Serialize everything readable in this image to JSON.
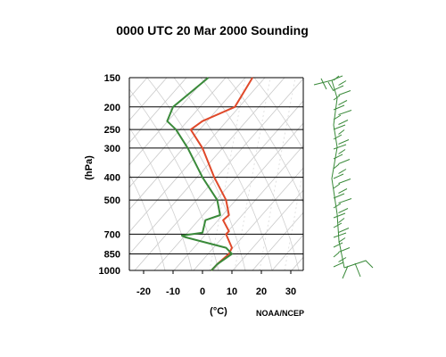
{
  "chart_data": {
    "type": "line",
    "title": "0000 UTC  20 Mar 2000 Sounding",
    "xlabel": "(°C)",
    "ylabel": "(hPa)",
    "credit": "NOAA/NCEP",
    "y_scale": "log",
    "y_inverted": true,
    "xlim": [
      -25,
      35
    ],
    "ylim": [
      1000,
      150
    ],
    "x_ticks": [
      -20,
      -10,
      0,
      10,
      20,
      30
    ],
    "y_ticks": [
      150,
      200,
      250,
      300,
      400,
      500,
      700,
      850,
      1000
    ],
    "grid": true,
    "series": [
      {
        "kind": "temperature",
        "color": "#e0492a",
        "points": [
          {
            "p": 150,
            "t": 17
          },
          {
            "p": 200,
            "t": 11
          },
          {
            "p": 230,
            "t": 0
          },
          {
            "p": 250,
            "t": -4
          },
          {
            "p": 300,
            "t": 0
          },
          {
            "p": 400,
            "t": 4
          },
          {
            "p": 500,
            "t": 8
          },
          {
            "p": 580,
            "t": 9
          },
          {
            "p": 610,
            "t": 7
          },
          {
            "p": 680,
            "t": 9
          },
          {
            "p": 700,
            "t": 8
          },
          {
            "p": 800,
            "t": 10
          },
          {
            "p": 850,
            "t": 9
          },
          {
            "p": 940,
            "t": 5
          },
          {
            "p": 1000,
            "t": 3
          }
        ]
      },
      {
        "kind": "dewpoint",
        "color": "#3a8a3a",
        "points": [
          {
            "p": 150,
            "t": 2
          },
          {
            "p": 200,
            "t": -10
          },
          {
            "p": 230,
            "t": -12
          },
          {
            "p": 250,
            "t": -9
          },
          {
            "p": 300,
            "t": -5
          },
          {
            "p": 400,
            "t": 0
          },
          {
            "p": 500,
            "t": 5
          },
          {
            "p": 580,
            "t": 6
          },
          {
            "p": 610,
            "t": 1
          },
          {
            "p": 690,
            "t": 0
          },
          {
            "p": 710,
            "t": -7
          },
          {
            "p": 720,
            "t": -6
          },
          {
            "p": 800,
            "t": 8
          },
          {
            "p": 850,
            "t": 10
          },
          {
            "p": 940,
            "t": 5
          },
          {
            "p": 1000,
            "t": 3
          }
        ]
      }
    ],
    "wind_profile_color": "#3a8a3a"
  }
}
